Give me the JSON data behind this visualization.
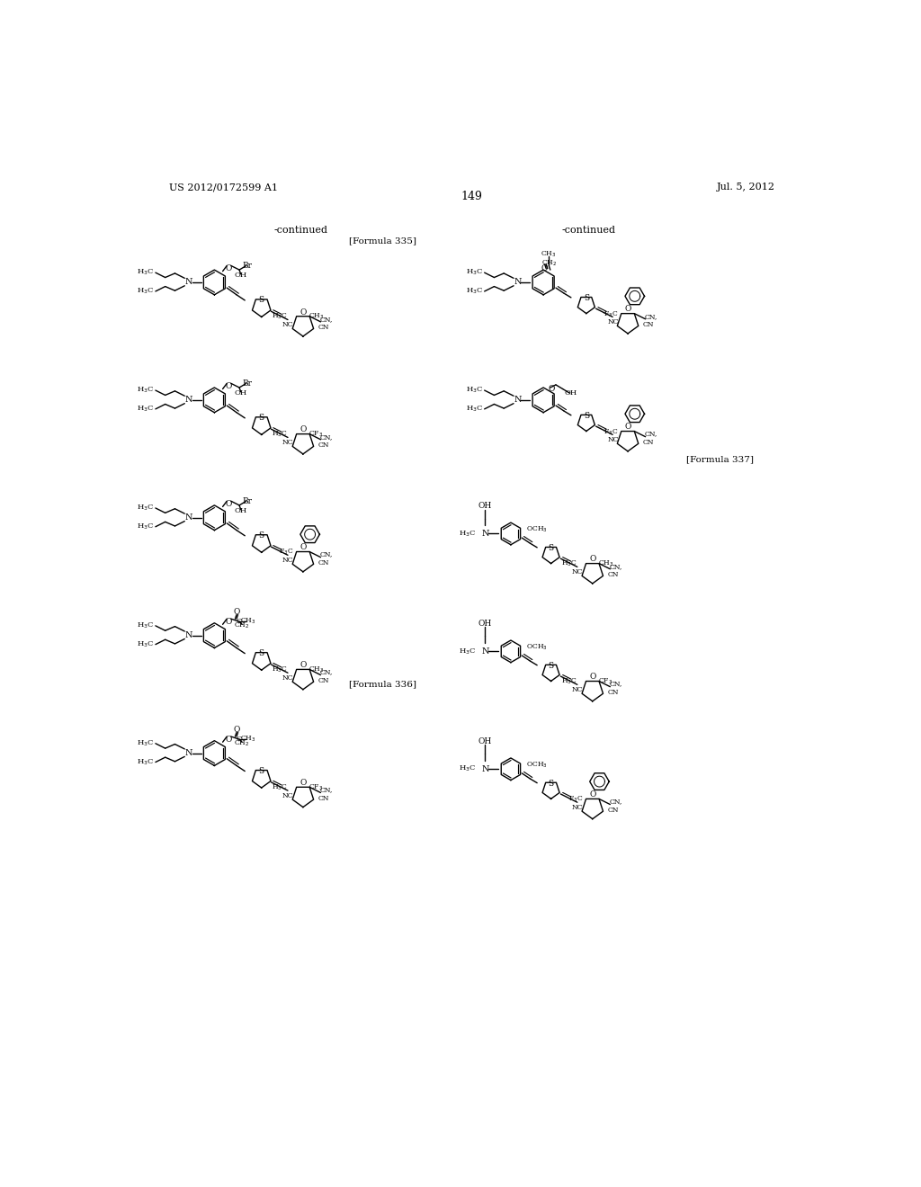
{
  "page_number": "149",
  "patent_number": "US 2012/0172599 A1",
  "patent_date": "Jul. 5, 2012",
  "continued_left": "-continued",
  "continued_right": "-continued",
  "formula_335": "[Formula 335]",
  "formula_336": "[Formula 336]",
  "formula_337": "[Formula 337]",
  "bg_color": "#ffffff",
  "text_color": "#000000",
  "figsize": [
    10.24,
    13.2
  ],
  "dpi": 100
}
